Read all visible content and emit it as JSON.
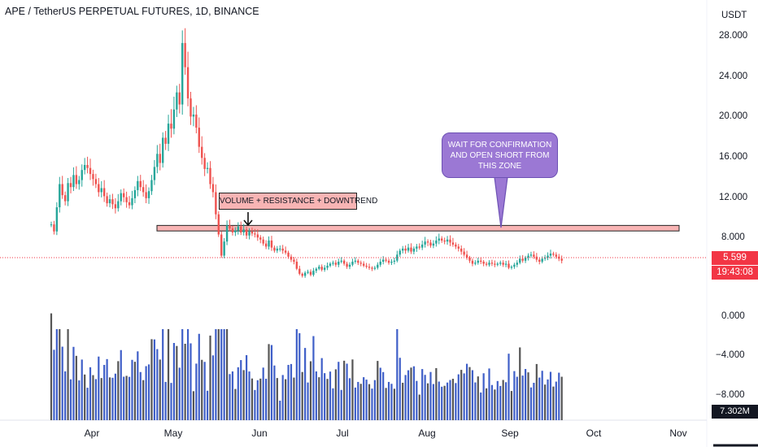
{
  "header": {
    "symbol_title": "APE / TetherUS PERPETUAL FUTURES, 1D, BINANCE",
    "currency": "USDT"
  },
  "price_scale": {
    "ticks": [
      "28.000",
      "24.000",
      "20.000",
      "16.000",
      "12.000",
      "8.000"
    ]
  },
  "volume_scale": {
    "ticks": [
      "0.000",
      "−4.000",
      "−8.000"
    ],
    "last_volume": "7.302M"
  },
  "last_price": {
    "price": "5.599",
    "countdown": "19:43:08"
  },
  "annotations": {
    "resistance_label": "VOLUME + RESISTANCE + DOWNTREND",
    "callout_text": "WAIT FOR CONFIRMATION AND OPEN SHORT FROM THIS ZONE",
    "zone_low": 8.55,
    "zone_high": 9.1
  },
  "colors": {
    "up": "#26a69a",
    "down": "#ef5350",
    "volume_blue": "#3f5fc8",
    "volume_dark": "#555555",
    "zone_fill": "#f8b4b4",
    "callout_fill": "#9b78d4",
    "last_price": "#f23645"
  },
  "chart_data": {
    "type": "candlestick",
    "title": "APE / TetherUS PERPETUAL FUTURES, 1D, BINANCE",
    "ylabel": "USDT",
    "ylim": [
      3.5,
      29
    ],
    "x_labels": [
      "Apr",
      "May",
      "Jun",
      "Jul",
      "Aug",
      "Sep",
      "Oct",
      "Nov"
    ],
    "close_series": [
      [
        9.2,
        8.5,
        10.9,
        13.2,
        12.1,
        11.5,
        13.3,
        12.9,
        14.1,
        13.2,
        13.6,
        14.6,
        15.1,
        14.8,
        14.2,
        13.7,
        13.2,
        12.4,
        12.8,
        12.0,
        11.3,
        11.7,
        11.2,
        10.8,
        11.5,
        12.3,
        11.9,
        11.4,
        11.1,
        11.8,
        12.6,
        13.5,
        12.9,
        12.4,
        11.8,
        12.5,
        13.6,
        14.9,
        16.2,
        15.3,
        17.8,
        17.2,
        19.2,
        18.7
      ],
      [
        20.6,
        22.3,
        21.1,
        27.2,
        24.8,
        21.7,
        19.9,
        20.1,
        18.8,
        16.9,
        15.8,
        14.7,
        14.8,
        13.2,
        12.4,
        10.2,
        8.2,
        6.1,
        7.5,
        9.1,
        8.8,
        8.4,
        8.6,
        9.0,
        8.4,
        8.7,
        8.1,
        8.5,
        8.3,
        8.2,
        7.9,
        7.7,
        7.3,
        7.0,
        7.6,
        6.9,
        6.6,
        6.8,
        6.8,
        6.6,
        6.4,
        6.0,
        5.7,
        5.5,
        4.8,
        4.3,
        4.1,
        4.4,
        4.5,
        4.2,
        4.6,
        4.8,
        5.0,
        4.7,
        4.9,
        5.1,
        5.3,
        5.4,
        5.2,
        5.5
      ],
      [
        5.6,
        5.3,
        5.0,
        5.2,
        5.5,
        5.6,
        5.4,
        5.3,
        5.1,
        5.0,
        4.9,
        4.8,
        4.9,
        5.2,
        5.5,
        5.7,
        5.6,
        5.4,
        5.5,
        5.6,
        6.2,
        6.6,
        6.8,
        6.6,
        6.9,
        6.5,
        6.8,
        7.0,
        6.9,
        7.2,
        7.5,
        7.4,
        7.1,
        7.3,
        7.6,
        7.8,
        7.6,
        7.5,
        7.7,
        7.4,
        7.2,
        7.0,
        6.8,
        6.5,
        6.2,
        5.9,
        5.6,
        5.3,
        5.4,
        5.6,
        5.5,
        5.3,
        5.2,
        5.4,
        5.3,
        5.2,
        5.3,
        5.4,
        5.2,
        5.3
      ],
      [
        4.9,
        5.0,
        5.2,
        5.4,
        5.8,
        5.6,
        5.9,
        6.1,
        6.2,
        6.0,
        5.7,
        5.5,
        5.8,
        5.9,
        6.1,
        6.3,
        6.2,
        6.0,
        5.8,
        5.6
      ]
    ],
    "volume_ylim": [
      -9.6,
      0.8
    ]
  }
}
